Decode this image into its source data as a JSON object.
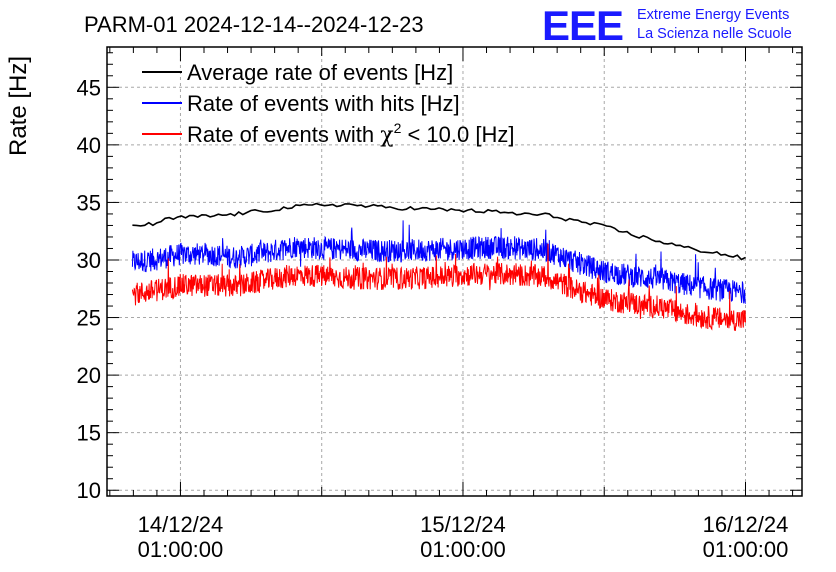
{
  "chart_data": {
    "type": "line",
    "title": "PARM-01 2024-12-14--2024-12-23",
    "ylabel": "Rate [Hz]",
    "xlabel": "",
    "ylim": [
      9.5,
      48.5
    ],
    "xlim": [
      -0.26,
      2.2
    ],
    "x_unit": "days since 14/12/24 01:00:00",
    "yticks": [
      10,
      15,
      20,
      25,
      30,
      35,
      40,
      45
    ],
    "xticks": [
      {
        "x": 0,
        "date": "14/12/24",
        "time": "01:00:00"
      },
      {
        "x": 1,
        "date": "15/12/24",
        "time": "01:00:00"
      },
      {
        "x": 2,
        "date": "16/12/24",
        "time": "01:00:00"
      }
    ],
    "grid": true,
    "legend_position": "top-left",
    "series": [
      {
        "name": "Average rate of events [Hz]",
        "color": "#000000",
        "style": "smooth",
        "x": [
          -0.17,
          -0.1,
          -0.05,
          0.0,
          0.1,
          0.2,
          0.3,
          0.4,
          0.5,
          0.6,
          0.7,
          0.8,
          0.9,
          1.0,
          1.1,
          1.2,
          1.3,
          1.4,
          1.5,
          1.6,
          1.7,
          1.8,
          1.9,
          2.0
        ],
        "values": [
          33.0,
          33.1,
          33.5,
          33.7,
          33.8,
          34.0,
          34.3,
          34.6,
          34.8,
          34.8,
          34.6,
          34.5,
          34.4,
          34.3,
          34.2,
          34.0,
          33.9,
          33.4,
          32.9,
          32.2,
          31.6,
          31.0,
          30.6,
          30.1
        ]
      },
      {
        "name": "Rate of events with hits [Hz]",
        "color": "#0000ff",
        "style": "noisy",
        "noise": 1.0,
        "x": [
          -0.17,
          -0.1,
          0.0,
          0.1,
          0.2,
          0.3,
          0.4,
          0.5,
          0.6,
          0.7,
          0.8,
          0.9,
          1.0,
          1.1,
          1.2,
          1.3,
          1.4,
          1.5,
          1.6,
          1.7,
          1.8,
          1.9,
          2.0
        ],
        "values": [
          29.8,
          30.0,
          30.5,
          30.5,
          30.2,
          30.6,
          31.2,
          31.0,
          30.9,
          30.8,
          30.8,
          30.9,
          31.0,
          31.1,
          31.0,
          30.8,
          29.8,
          29.0,
          28.6,
          28.3,
          27.8,
          27.4,
          27.2
        ]
      },
      {
        "name": "Rate of events with χ² < 10.0 [Hz]",
        "color": "#ff0000",
        "style": "noisy",
        "noise": 1.0,
        "x": [
          -0.17,
          -0.1,
          0.0,
          0.1,
          0.2,
          0.3,
          0.4,
          0.5,
          0.6,
          0.7,
          0.8,
          0.9,
          1.0,
          1.1,
          1.2,
          1.3,
          1.4,
          1.5,
          1.6,
          1.7,
          1.8,
          1.9,
          2.0
        ],
        "values": [
          27.0,
          27.3,
          27.8,
          27.8,
          27.7,
          28.2,
          28.7,
          28.6,
          28.4,
          28.4,
          28.4,
          28.5,
          28.7,
          28.8,
          28.7,
          28.5,
          27.4,
          26.6,
          26.2,
          25.9,
          25.2,
          24.9,
          24.8
        ]
      }
    ],
    "legend": {
      "entries": [
        {
          "label": "Average rate of events [Hz]",
          "color": "#000000"
        },
        {
          "label": "Rate of events with hits [Hz]",
          "color": "#0000ff"
        },
        {
          "label_prefix": "Rate of events with ",
          "label_chi": "χ",
          "label_exp": "2",
          "label_suffix": " < 10.0 [Hz]",
          "color": "#ff0000"
        }
      ]
    }
  },
  "logo": {
    "mark": "EEE",
    "line1": "Extreme Energy Events",
    "line2": "La Scienza nelle Scuole",
    "color": "#1a1aff"
  }
}
